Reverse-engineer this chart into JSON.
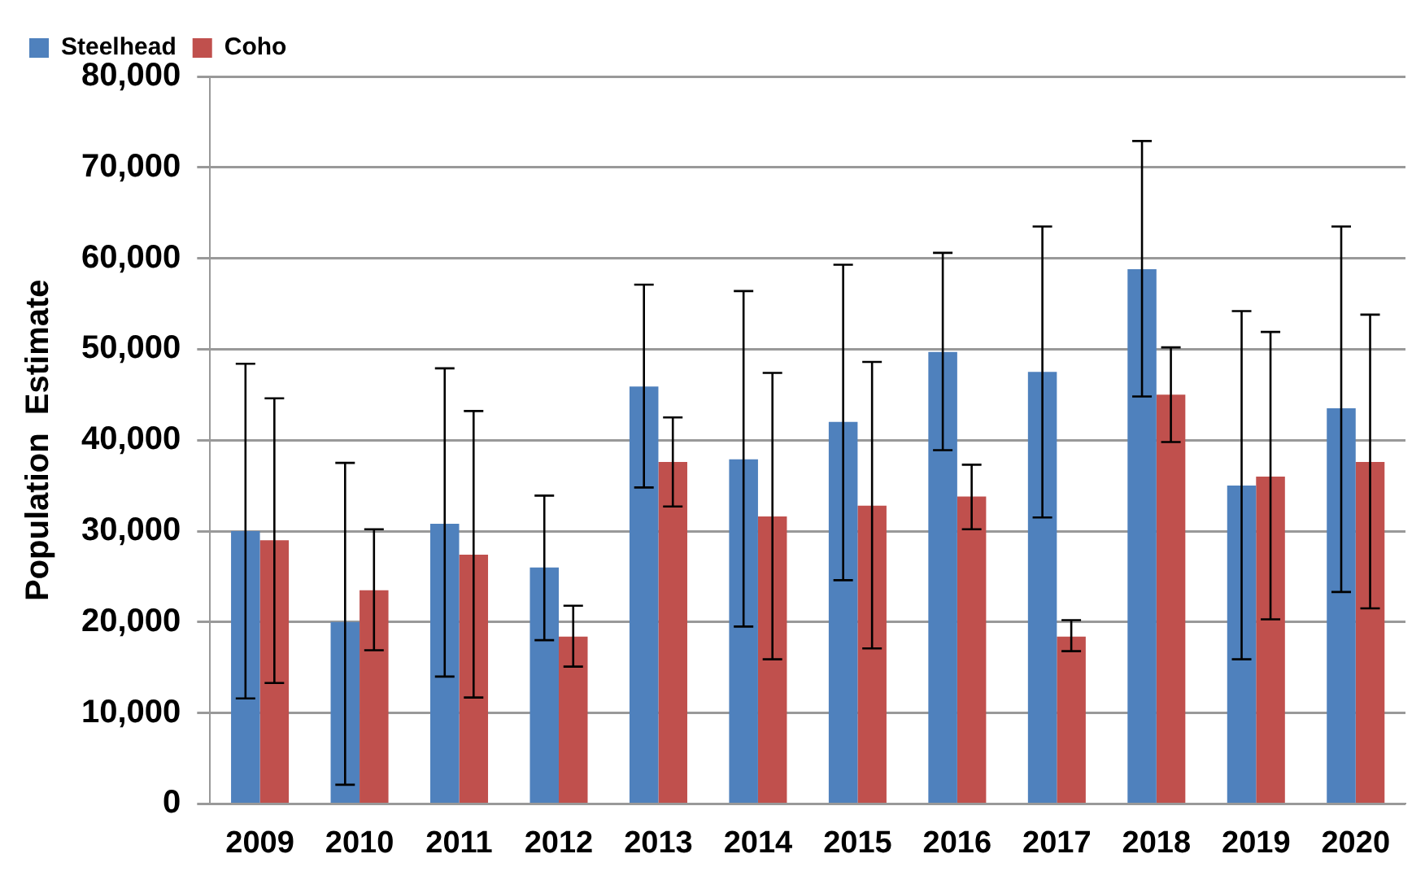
{
  "chart_data": {
    "type": "bar",
    "ylabel": "Population  Estimate",
    "categories": [
      "2009",
      "2010",
      "2011",
      "2012",
      "2013",
      "2014",
      "2015",
      "2016",
      "2017",
      "2018",
      "2019",
      "2020"
    ],
    "series": [
      {
        "name": "Steelhead",
        "color": "#4f81bd",
        "values": [
          30000,
          20000,
          30800,
          26000,
          45900,
          37900,
          42000,
          49700,
          47500,
          58800,
          35000,
          43500
        ],
        "errors": [
          [
            11600,
            48400
          ],
          [
            2100,
            37500
          ],
          [
            14000,
            47900
          ],
          [
            18000,
            33900
          ],
          [
            34800,
            57100
          ],
          [
            19500,
            56400
          ],
          [
            24600,
            59300
          ],
          [
            38900,
            60600
          ],
          [
            31500,
            63500
          ],
          [
            44800,
            72900
          ],
          [
            15900,
            54200
          ],
          [
            23300,
            63500
          ]
        ]
      },
      {
        "name": "Coho",
        "color": "#c0504d",
        "values": [
          29000,
          23500,
          27400,
          18400,
          37600,
          31600,
          32800,
          33800,
          18400,
          45000,
          36000,
          37600
        ],
        "errors": [
          [
            13300,
            44600
          ],
          [
            16900,
            30200
          ],
          [
            11700,
            43200
          ],
          [
            15100,
            21800
          ],
          [
            32700,
            42500
          ],
          [
            15900,
            47400
          ],
          [
            17100,
            48600
          ],
          [
            30200,
            37300
          ],
          [
            16800,
            20200
          ],
          [
            39800,
            50200
          ],
          [
            20300,
            51900
          ],
          [
            21500,
            53800
          ]
        ]
      }
    ],
    "ylim": [
      0,
      80000
    ],
    "yticks": [
      0,
      {
        "value": 10000,
        "label": "10,000"
      },
      {
        "value": 20000,
        "label": "20,000"
      },
      {
        "value": 30000,
        "label": "30,000"
      },
      {
        "value": 40000,
        "label": "40,000"
      },
      {
        "value": 50000,
        "label": "50,000"
      },
      {
        "value": 60000,
        "label": "60,000"
      },
      {
        "value": 70000,
        "label": "70,000"
      },
      {
        "value": 80000,
        "label": "80,000"
      }
    ],
    "grid": "y",
    "legend": "top left"
  }
}
